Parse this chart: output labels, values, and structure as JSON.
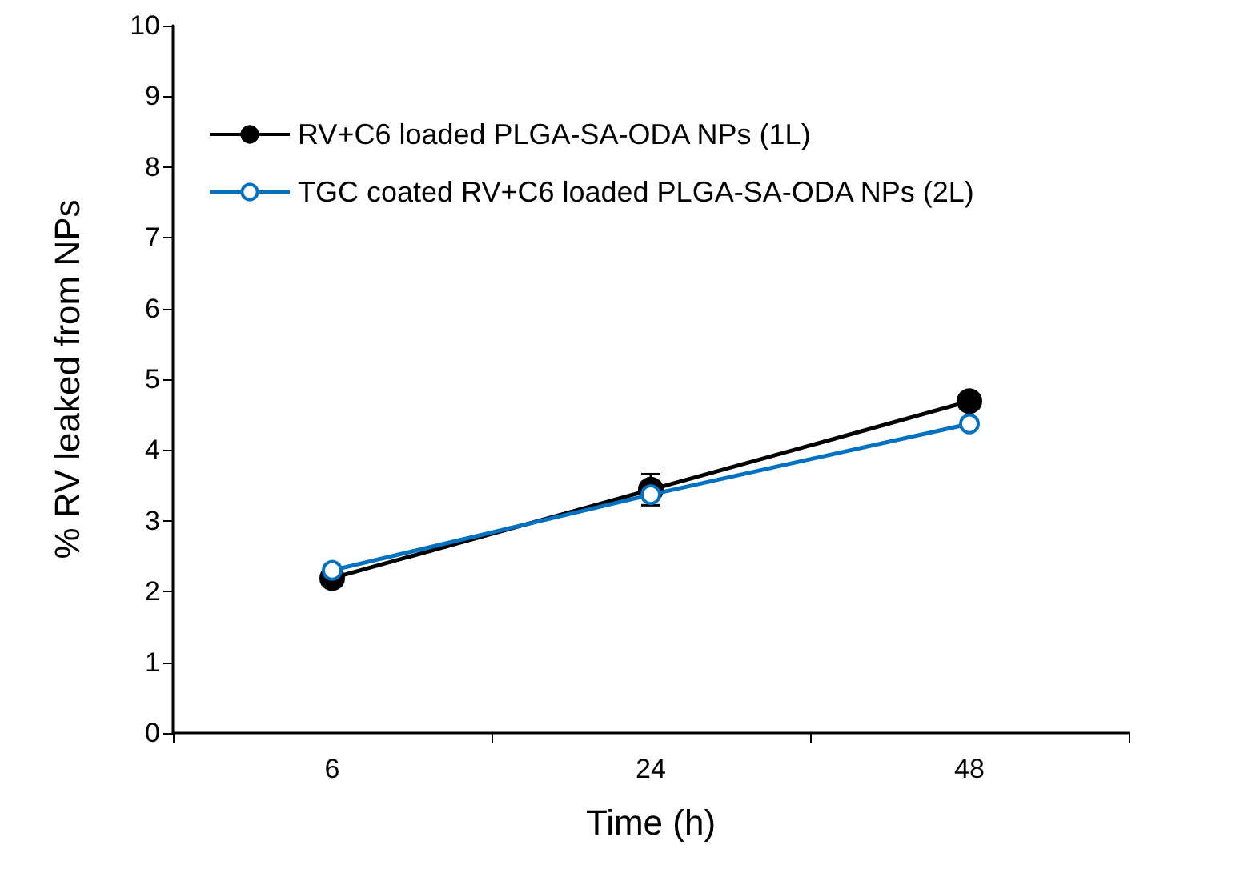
{
  "chart_data": {
    "type": "line",
    "xlabel": "Time (h)",
    "ylabel": "% RV leaked from NPs",
    "categories": [
      "6",
      "24",
      "48"
    ],
    "series": [
      {
        "name": "RV+C6 loaded PLGA-SA-ODA NPs (1L)",
        "color": "#000000",
        "values": [
          2.19,
          3.44,
          4.69
        ],
        "errors": [
          null,
          0.22,
          null
        ]
      },
      {
        "name": "TGC coated RV+C6 loaded PLGA-SA-ODA NPs (2L)",
        "color": "#0070c0",
        "values": [
          2.3,
          3.37,
          4.37
        ]
      }
    ],
    "ylim": [
      0,
      10
    ],
    "yticks": [
      0,
      1,
      2,
      3,
      4,
      5,
      6,
      7,
      8,
      9,
      10
    ],
    "grid": false,
    "legend": "top left",
    "marker": "circle",
    "line_style": "solid"
  }
}
